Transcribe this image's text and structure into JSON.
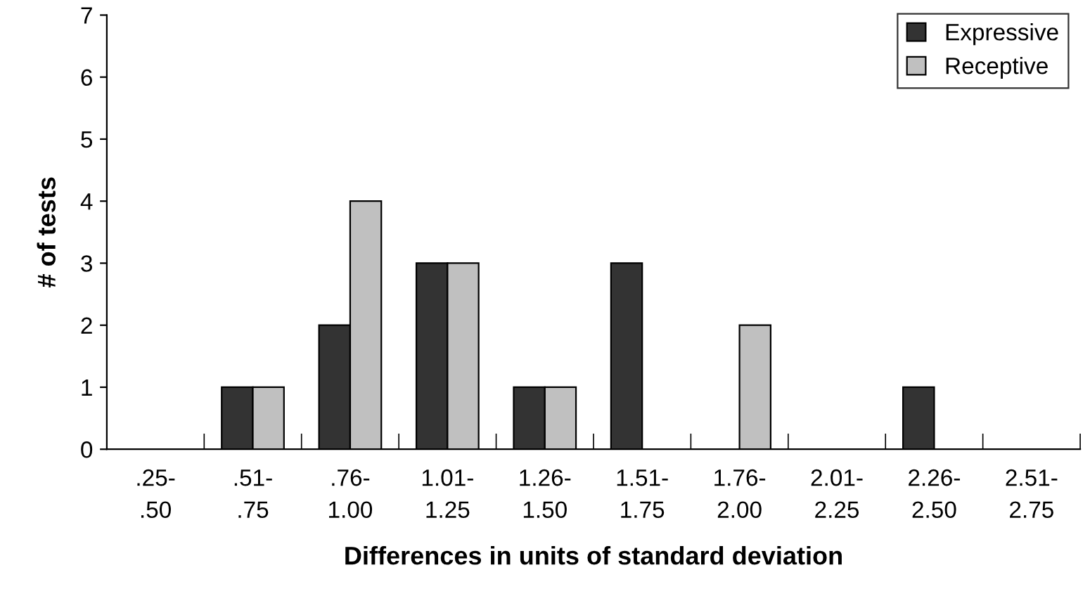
{
  "chart_data": {
    "type": "bar",
    "xlabel": "Differences in units of standard deviation",
    "ylabel": "# of tests",
    "categories": [
      ".25-\n.50",
      ".51-\n.75",
      ".76-\n1.00",
      "1.01-\n1.25",
      "1.26-\n1.50",
      "1.51-\n1.75",
      "1.76-\n2.00",
      "2.01-\n2.25",
      "2.26-\n2.50",
      "2.51-\n2.75"
    ],
    "series": [
      {
        "name": "Expressive",
        "color": "#333333",
        "values": [
          0,
          1,
          2,
          3,
          1,
          3,
          0,
          0,
          1,
          0
        ]
      },
      {
        "name": "Receptive",
        "color": "#c0c0c0",
        "values": [
          0,
          1,
          4,
          3,
          1,
          0,
          2,
          0,
          0,
          0
        ]
      }
    ],
    "ylim": [
      0,
      7
    ],
    "yticks": [
      0,
      1,
      2,
      3,
      4,
      5,
      6,
      7
    ],
    "grid": false,
    "legend": "top right"
  }
}
